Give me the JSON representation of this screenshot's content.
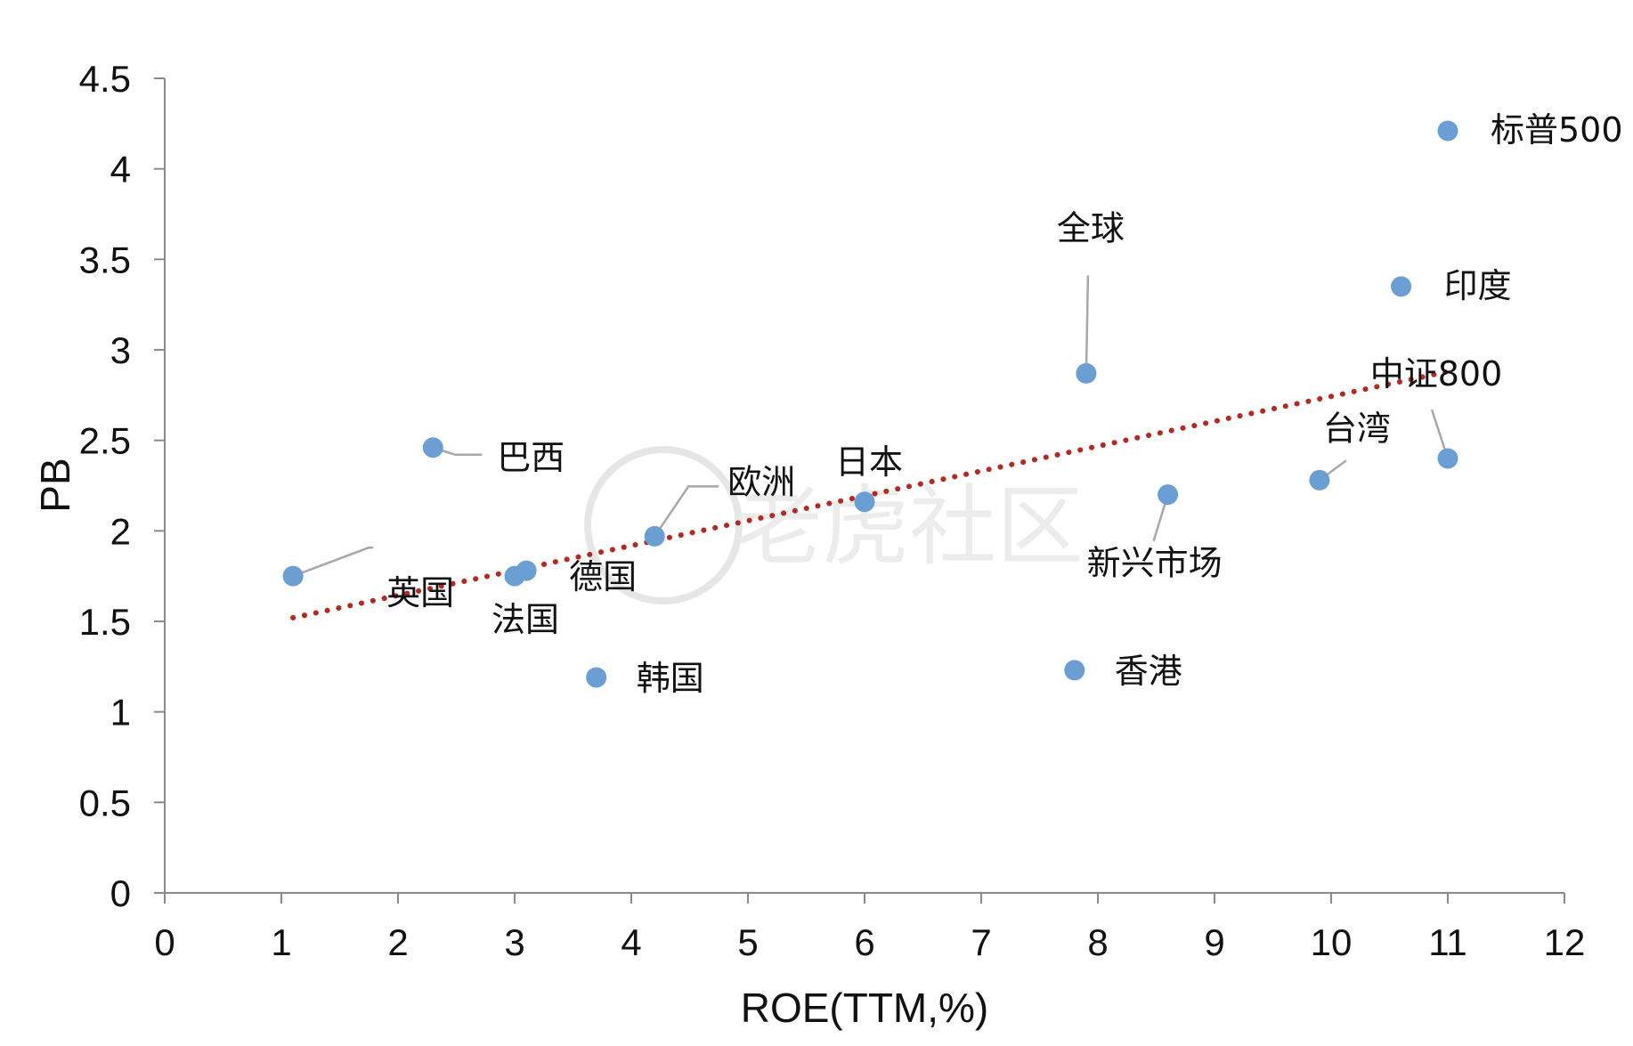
{
  "chart_data": {
    "type": "scatter",
    "xlabel": "ROE(TTM,%)",
    "ylabel": "PB",
    "xlim": [
      0,
      12
    ],
    "ylim": [
      0,
      4.5
    ],
    "x_ticks": [
      "0",
      "1",
      "2",
      "3",
      "4",
      "5",
      "6",
      "7",
      "8",
      "9",
      "10",
      "11",
      "12"
    ],
    "y_ticks": [
      "0",
      "0.5",
      "1",
      "1.5",
      "2",
      "2.5",
      "3",
      "3.5",
      "4",
      "4.5"
    ],
    "grid": false,
    "legend": "none",
    "marker_color": "#6b9fd4",
    "points": [
      {
        "label": "英国",
        "x": 1.1,
        "y": 1.75
      },
      {
        "label": "巴西",
        "x": 2.3,
        "y": 2.46
      },
      {
        "label": "法国",
        "x": 3.0,
        "y": 1.75
      },
      {
        "label": "德国",
        "x": 3.1,
        "y": 1.78
      },
      {
        "label": "韩国",
        "x": 3.7,
        "y": 1.19
      },
      {
        "label": "欧洲",
        "x": 4.2,
        "y": 1.97
      },
      {
        "label": "日本",
        "x": 6.0,
        "y": 2.16
      },
      {
        "label": "香港",
        "x": 7.8,
        "y": 1.23
      },
      {
        "label": "全球",
        "x": 7.9,
        "y": 2.87
      },
      {
        "label": "新兴市场",
        "x": 8.6,
        "y": 2.2
      },
      {
        "label": "台湾",
        "x": 9.9,
        "y": 2.28
      },
      {
        "label": "印度",
        "x": 10.6,
        "y": 3.35
      },
      {
        "label": "中证800",
        "x": 11.0,
        "y": 2.4
      },
      {
        "label": "标普500",
        "x": 11.0,
        "y": 4.21
      }
    ],
    "trendline": {
      "type": "linear",
      "style": "dotted",
      "color": "#b22a22",
      "x_range": [
        1.1,
        11.0
      ],
      "y_values": [
        1.52,
        2.88
      ]
    },
    "watermark": "老虎社区"
  }
}
